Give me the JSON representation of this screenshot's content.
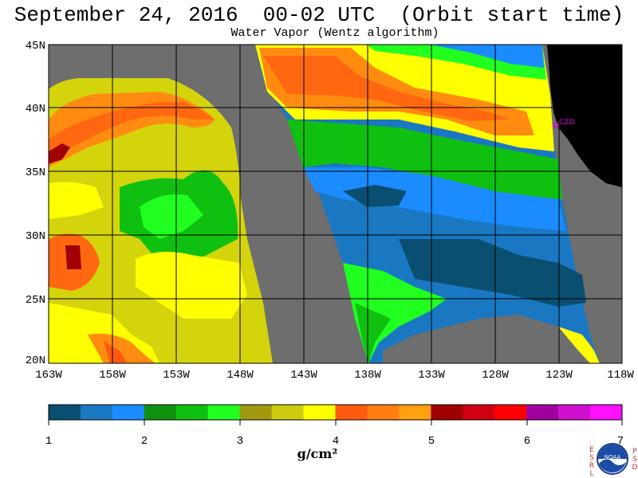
{
  "title": "September 24, 2016  00-02 UTC  (Orbit start time)",
  "subtitle": "Water Vapor (Wentz algorithm)",
  "lat_labels": [
    "45N",
    "40N",
    "35N",
    "30N",
    "25N",
    "20N"
  ],
  "lon_labels": [
    "163W",
    "158W",
    "153W",
    "148W",
    "143W",
    "138W",
    "133W",
    "128W",
    "123W",
    "118W"
  ],
  "station": "CZD",
  "colorbar": {
    "colors": [
      "#0a4e72",
      "#1a78c2",
      "#1a8cff",
      "#109010",
      "#10c010",
      "#20ff20",
      "#a09a10",
      "#cccc10",
      "#ffff00",
      "#ff5a10",
      "#ff7d10",
      "#ffa010",
      "#a00000",
      "#d00010",
      "#ff0000",
      "#a000a0",
      "#d010d0",
      "#ff10ff"
    ],
    "labels": [
      "1",
      "2",
      "3",
      "4",
      "5",
      "6",
      "7"
    ],
    "unit": "g/cm²"
  },
  "logo": {
    "left_text": "ESRL",
    "right_text": "PSD",
    "center_text": "NOAA"
  }
}
